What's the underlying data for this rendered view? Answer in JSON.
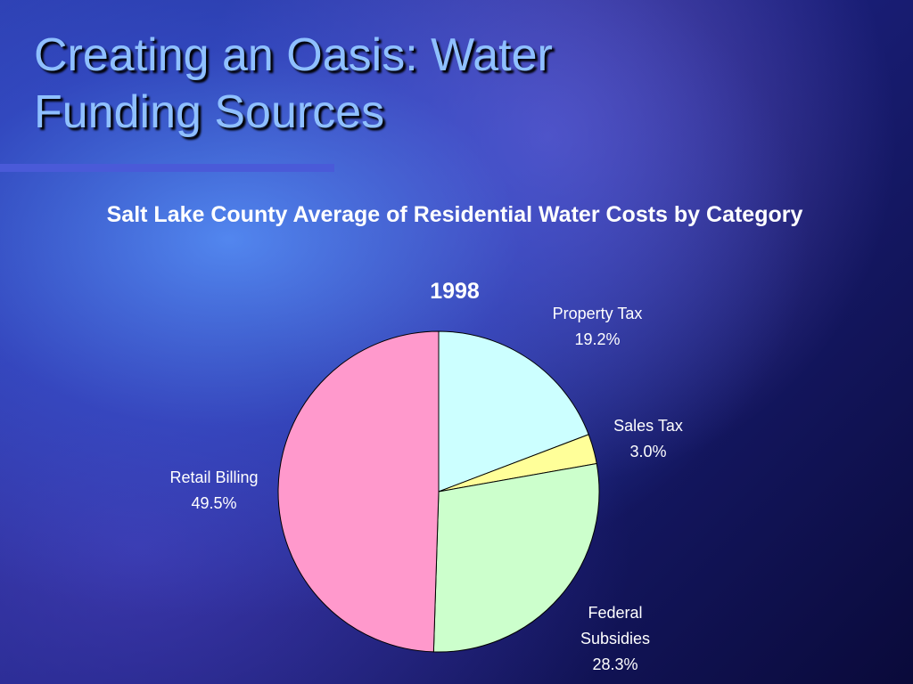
{
  "slide_title": "Creating an Oasis: Water Funding Sources",
  "chart_data": {
    "type": "pie",
    "title": "Salt Lake County Average of  Residential Water Costs by Category",
    "subtitle": "1998",
    "categories": [
      "Property Tax",
      "Sales Tax",
      "Federal Subsidies",
      "Retail Billing"
    ],
    "values": [
      19.2,
      3.0,
      28.3,
      49.5
    ],
    "value_labels": [
      "19.2%",
      "3.0%",
      "28.3%",
      "49.5%"
    ],
    "colors": [
      "#ccffff",
      "#ffff99",
      "#ccffcc",
      "#ff99cc"
    ]
  }
}
